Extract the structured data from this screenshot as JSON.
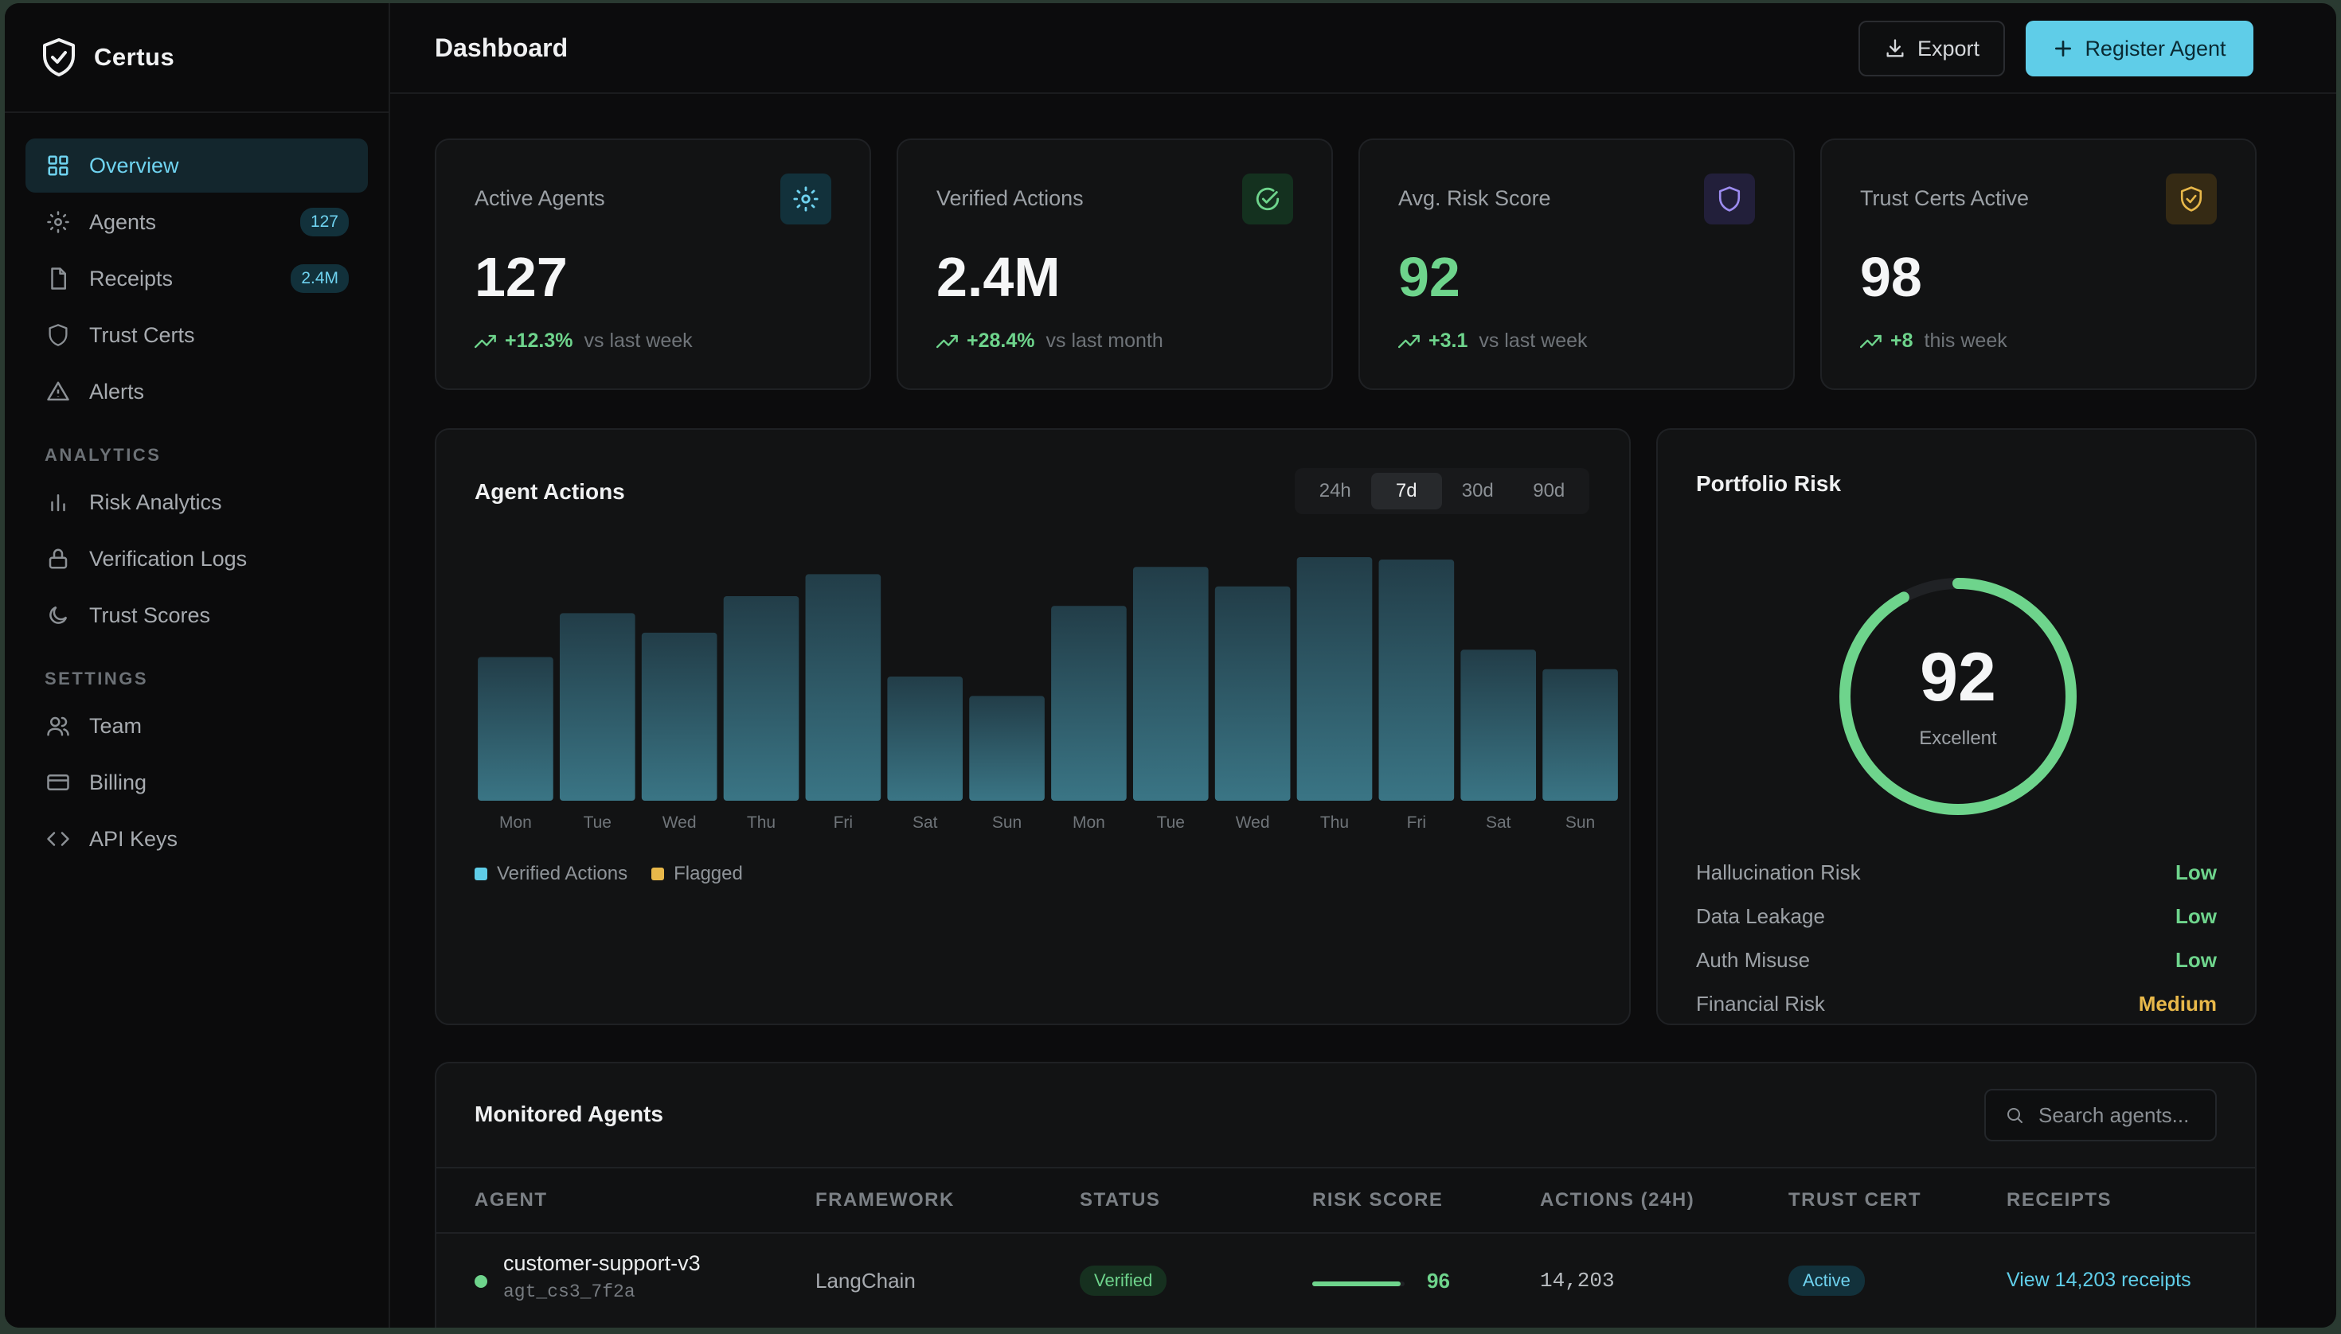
{
  "app": {
    "name": "Certus"
  },
  "sidebar": {
    "items": [
      {
        "label": "Overview",
        "icon": "grid-icon",
        "active": true
      },
      {
        "label": "Agents",
        "icon": "agents-icon",
        "badge": "127"
      },
      {
        "label": "Receipts",
        "icon": "file-icon",
        "badge": "2.4M"
      },
      {
        "label": "Trust Certs",
        "icon": "shield-icon"
      },
      {
        "label": "Alerts",
        "icon": "warning-icon"
      }
    ],
    "analytics_heading": "ANALYTICS",
    "analytics_items": [
      {
        "label": "Risk Analytics",
        "icon": "bar-chart-icon"
      },
      {
        "label": "Verification Logs",
        "icon": "lock-icon"
      },
      {
        "label": "Trust Scores",
        "icon": "moon-icon"
      }
    ],
    "settings_heading": "SETTINGS",
    "settings_items": [
      {
        "label": "Team",
        "icon": "users-icon"
      },
      {
        "label": "Billing",
        "icon": "credit-card-icon"
      },
      {
        "label": "API Keys",
        "icon": "code-icon"
      }
    ]
  },
  "header": {
    "title": "Dashboard",
    "export_label": "Export",
    "register_label": "Register Agent"
  },
  "stats": [
    {
      "label": "Active Agents",
      "value": "127",
      "delta": "+12.3%",
      "compare": "vs last week",
      "icon": "sun-icon",
      "icon_color": "#6fd3f0"
    },
    {
      "label": "Verified Actions",
      "value": "2.4M",
      "delta": "+28.4%",
      "compare": "vs last month",
      "icon": "check-circle-icon",
      "icon_color": "#6ed48c"
    },
    {
      "label": "Avg. Risk Score",
      "value": "92",
      "delta": "+3.1",
      "compare": "vs last week",
      "icon": "shield-icon",
      "icon_color": "#9d8cf0"
    },
    {
      "label": "Trust Certs Active",
      "value": "98",
      "delta": "+8",
      "compare": "this week",
      "icon": "shield-check-icon",
      "icon_color": "#e8b84a"
    }
  ],
  "agent_actions": {
    "title": "Agent Actions",
    "ranges": [
      "24h",
      "7d",
      "30d",
      "90d"
    ],
    "active_range": "7d",
    "legend": [
      {
        "name": "Verified Actions",
        "color": "#5fcde8"
      },
      {
        "name": "Flagged",
        "color": "#e8b84a"
      }
    ]
  },
  "chart_data": {
    "type": "bar",
    "title": "Agent Actions",
    "categories": [
      "Mon",
      "Tue",
      "Wed",
      "Thu",
      "Fri",
      "Sat",
      "Sun",
      "Mon",
      "Tue",
      "Wed",
      "Thu",
      "Fri",
      "Sat",
      "Sun"
    ],
    "series": [
      {
        "name": "Verified Actions",
        "values": [
          59,
          77,
          69,
          84,
          93,
          51,
          43,
          80,
          96,
          88,
          100,
          99,
          62,
          54
        ]
      }
    ],
    "ylim": [
      0,
      100
    ],
    "grid": false,
    "legend": "bottom-left"
  },
  "portfolio_risk": {
    "title": "Portfolio Risk",
    "score": "92",
    "score_fraction": 0.92,
    "rating": "Excellent",
    "rows": [
      {
        "name": "Hallucination Risk",
        "level": "Low",
        "color": "#6ed48c"
      },
      {
        "name": "Data Leakage",
        "level": "Low",
        "color": "#6ed48c"
      },
      {
        "name": "Auth Misuse",
        "level": "Low",
        "color": "#6ed48c"
      },
      {
        "name": "Financial Risk",
        "level": "Medium",
        "color": "#e8b84a"
      }
    ]
  },
  "monitored": {
    "title": "Monitored Agents",
    "search_placeholder": "Search agents...",
    "columns": [
      "AGENT",
      "FRAMEWORK",
      "STATUS",
      "RISK SCORE",
      "ACTIONS (24H)",
      "TRUST CERT",
      "RECEIPTS"
    ],
    "rows": [
      {
        "name": "customer-support-v3",
        "id": "agt_cs3_7f2a",
        "framework": "LangChain",
        "status": "Verified",
        "risk_score": "96",
        "risk_fraction": 0.96,
        "actions": "14,203",
        "trust_cert": "Active",
        "receipts": "View 14,203 receipts"
      }
    ]
  }
}
